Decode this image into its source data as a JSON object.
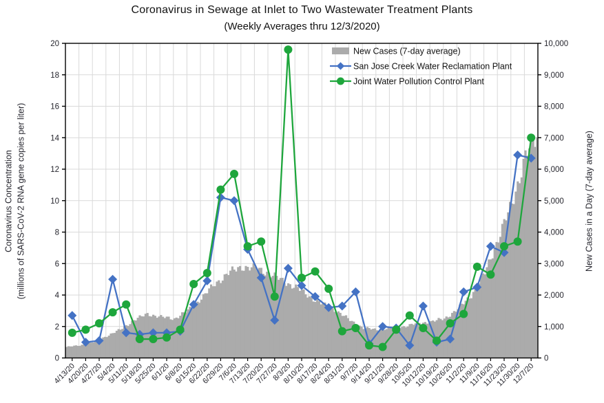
{
  "header": {
    "title": "Coronavirus in Sewage at Inlet to Two Wastewater Treatment Plants",
    "subtitle": "(Weekly Averages thru 12/3/2020)"
  },
  "chart_data": {
    "type": "combo-bar-line",
    "categories": [
      "4/13/20",
      "4/20/20",
      "4/27/20",
      "5/4/20",
      "5/11/20",
      "5/18/20",
      "5/25/20",
      "6/1/20",
      "6/8/20",
      "6/15/20",
      "6/22/20",
      "6/29/20",
      "7/6/20",
      "7/13/20",
      "7/20/20",
      "7/27/20",
      "8/3/20",
      "8/10/20",
      "8/17/20",
      "8/24/20",
      "8/31/20",
      "9/7/20",
      "9/14/20",
      "9/21/20",
      "9/28/20",
      "10/5/20",
      "10/12/20",
      "10/19/20",
      "10/26/20",
      "11/2/20",
      "11/9/20",
      "11/16/20",
      "11/23/20",
      "11/30/20",
      "12/7/20"
    ],
    "bar_series": {
      "name": "New Cases (7-day average)",
      "axis": "right",
      "color": "#ABABAB",
      "weekly_values": [
        350,
        400,
        500,
        700,
        900,
        1200,
        1400,
        1300,
        1250,
        1500,
        1900,
        2350,
        2700,
        2900,
        2850,
        2700,
        2450,
        2250,
        1950,
        1700,
        1500,
        1200,
        950,
        900,
        950,
        1000,
        1100,
        1150,
        1250,
        1550,
        2000,
        2700,
        3800,
        4900,
        6400
      ]
    },
    "line_series": [
      {
        "name": "San Jose Creek Water Reclamation Plant",
        "marker": "diamond",
        "color": "#4472C4",
        "values": [
          2.7,
          1.0,
          1.1,
          5.0,
          1.6,
          1.5,
          1.6,
          1.6,
          1.7,
          3.4,
          4.9,
          10.2,
          10.0,
          6.9,
          5.1,
          2.4,
          5.7,
          4.6,
          3.9,
          3.2,
          3.3,
          4.2,
          0.9,
          2.0,
          1.9,
          0.8,
          3.3,
          1.0,
          1.2,
          4.2,
          4.5,
          7.1,
          6.7,
          12.9,
          12.7
        ]
      },
      {
        "name": "Joint Water Pollution Control Plant",
        "marker": "circle",
        "color": "#1EA63C",
        "values": [
          1.6,
          1.8,
          2.2,
          2.9,
          3.4,
          1.2,
          1.2,
          1.3,
          1.8,
          4.7,
          5.4,
          10.7,
          11.7,
          7.1,
          7.4,
          3.9,
          19.6,
          5.1,
          5.5,
          4.4,
          1.7,
          1.9,
          0.8,
          0.7,
          1.8,
          2.7,
          1.9,
          1.1,
          2.2,
          2.8,
          5.8,
          5.3,
          7.1,
          7.4,
          14.0
        ]
      }
    ],
    "left_axis": {
      "title_line1": "Coronavirus Concentration",
      "title_line2": "(millions of SARS-CoV-2 RNA gene copies per liter)",
      "min": 0,
      "max": 20,
      "step": 2
    },
    "right_axis": {
      "title": "New Cases in a Day (7-day average)",
      "min": 0,
      "max": 10000,
      "step": 1000
    },
    "grid": true,
    "legend_position": "inside-top-center",
    "styles": {
      "gridline_color": "#D9D9D9",
      "axis_color": "#000000",
      "tick_label_color": "#26262e",
      "title_color": "#111111"
    }
  }
}
